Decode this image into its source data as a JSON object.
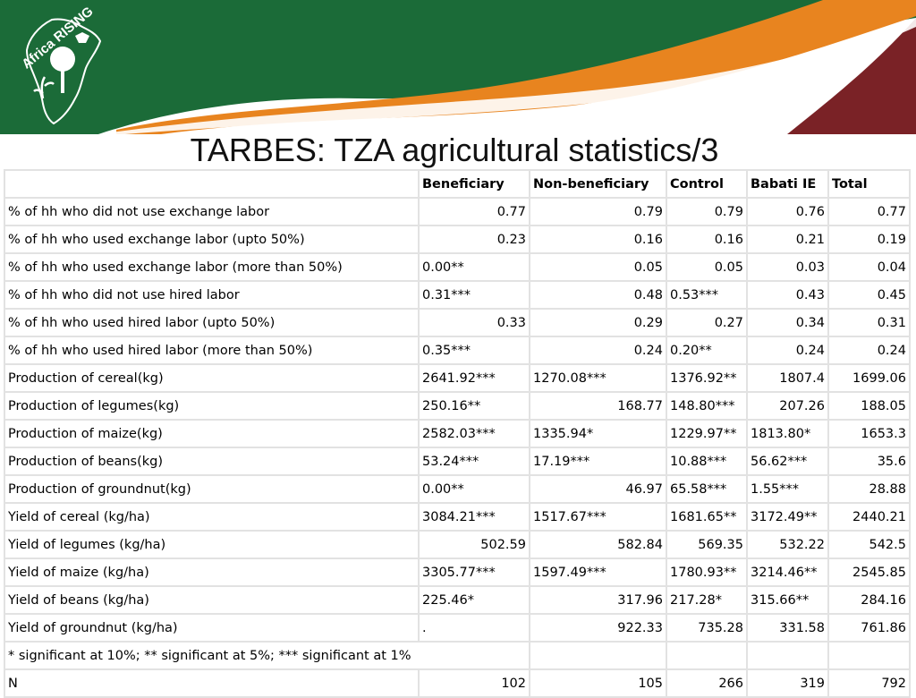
{
  "brand": {
    "logo_text": "Africa RISING",
    "colors": {
      "green": "#1b6b38",
      "orange": "#e8841f",
      "maroon": "#7a2226"
    }
  },
  "title": "TARBES: TZA agricultural statistics/3",
  "table": {
    "columns": [
      "",
      "Beneficiary",
      "Non-beneficiary",
      "Control",
      "Babati IE",
      "Total"
    ],
    "rows": [
      {
        "label": "% of hh who did not use exchange labor",
        "cells": [
          {
            "v": "0.77",
            "a": "r"
          },
          {
            "v": "0.79",
            "a": "r"
          },
          {
            "v": "0.79",
            "a": "r"
          },
          {
            "v": "0.76",
            "a": "r"
          },
          {
            "v": "0.77",
            "a": "r"
          }
        ]
      },
      {
        "label": "% of hh who used exchange labor (upto 50%)",
        "cells": [
          {
            "v": "0.23",
            "a": "r"
          },
          {
            "v": "0.16",
            "a": "r"
          },
          {
            "v": "0.16",
            "a": "r"
          },
          {
            "v": "0.21",
            "a": "r"
          },
          {
            "v": "0.19",
            "a": "r"
          }
        ]
      },
      {
        "label": "% of hh who used exchange labor (more than 50%)",
        "cells": [
          {
            "v": "0.00**",
            "a": "l"
          },
          {
            "v": "0.05",
            "a": "r"
          },
          {
            "v": "0.05",
            "a": "r"
          },
          {
            "v": "0.03",
            "a": "r"
          },
          {
            "v": "0.04",
            "a": "r"
          }
        ]
      },
      {
        "label": "% of hh who did not use hired labor",
        "cells": [
          {
            "v": "0.31***",
            "a": "l"
          },
          {
            "v": "0.48",
            "a": "r"
          },
          {
            "v": "0.53***",
            "a": "l"
          },
          {
            "v": "0.43",
            "a": "r"
          },
          {
            "v": "0.45",
            "a": "r"
          }
        ]
      },
      {
        "label": "% of hh who used hired labor (upto 50%)",
        "cells": [
          {
            "v": "0.33",
            "a": "r"
          },
          {
            "v": "0.29",
            "a": "r"
          },
          {
            "v": "0.27",
            "a": "r"
          },
          {
            "v": "0.34",
            "a": "r"
          },
          {
            "v": "0.31",
            "a": "r"
          }
        ]
      },
      {
        "label": "% of hh who used hired labor (more than 50%)",
        "cells": [
          {
            "v": "0.35***",
            "a": "l"
          },
          {
            "v": "0.24",
            "a": "r"
          },
          {
            "v": "0.20**",
            "a": "l"
          },
          {
            "v": "0.24",
            "a": "r"
          },
          {
            "v": "0.24",
            "a": "r"
          }
        ]
      },
      {
        "label": "Production of cereal(kg)",
        "cells": [
          {
            "v": "2641.92***",
            "a": "l"
          },
          {
            "v": "1270.08***",
            "a": "l"
          },
          {
            "v": "1376.92**",
            "a": "l"
          },
          {
            "v": "1807.4",
            "a": "r"
          },
          {
            "v": "1699.06",
            "a": "r"
          }
        ]
      },
      {
        "label": "Production of legumes(kg)",
        "cells": [
          {
            "v": "250.16**",
            "a": "l"
          },
          {
            "v": "168.77",
            "a": "r"
          },
          {
            "v": "148.80***",
            "a": "l"
          },
          {
            "v": "207.26",
            "a": "r"
          },
          {
            "v": "188.05",
            "a": "r"
          }
        ]
      },
      {
        "label": "Production of maize(kg)",
        "cells": [
          {
            "v": "2582.03***",
            "a": "l"
          },
          {
            "v": "1335.94*",
            "a": "l"
          },
          {
            "v": "1229.97**",
            "a": "l"
          },
          {
            "v": "1813.80*",
            "a": "l"
          },
          {
            "v": "1653.3",
            "a": "r"
          }
        ]
      },
      {
        "label": "Production of beans(kg)",
        "cells": [
          {
            "v": "53.24***",
            "a": "l"
          },
          {
            "v": "17.19***",
            "a": "l"
          },
          {
            "v": "10.88***",
            "a": "l"
          },
          {
            "v": "56.62***",
            "a": "l"
          },
          {
            "v": "35.6",
            "a": "r"
          }
        ]
      },
      {
        "label": "Production of groundnut(kg)",
        "cells": [
          {
            "v": "0.00**",
            "a": "l"
          },
          {
            "v": "46.97",
            "a": "r"
          },
          {
            "v": "65.58***",
            "a": "l"
          },
          {
            "v": "1.55***",
            "a": "l"
          },
          {
            "v": "28.88",
            "a": "r"
          }
        ]
      },
      {
        "label": "Yield of cereal (kg/ha)",
        "cells": [
          {
            "v": "3084.21***",
            "a": "l"
          },
          {
            "v": "1517.67***",
            "a": "l"
          },
          {
            "v": "1681.65**",
            "a": "l"
          },
          {
            "v": "3172.49**",
            "a": "l"
          },
          {
            "v": "2440.21",
            "a": "r"
          }
        ]
      },
      {
        "label": "Yield of legumes (kg/ha)",
        "cells": [
          {
            "v": "502.59",
            "a": "r"
          },
          {
            "v": "582.84",
            "a": "r"
          },
          {
            "v": "569.35",
            "a": "r"
          },
          {
            "v": "532.22",
            "a": "r"
          },
          {
            "v": "542.5",
            "a": "r"
          }
        ]
      },
      {
        "label": "Yield of maize (kg/ha)",
        "cells": [
          {
            "v": "3305.77***",
            "a": "l"
          },
          {
            "v": "1597.49***",
            "a": "l"
          },
          {
            "v": "1780.93**",
            "a": "l"
          },
          {
            "v": "3214.46**",
            "a": "l"
          },
          {
            "v": "2545.85",
            "a": "r"
          }
        ]
      },
      {
        "label": "Yield of beans (kg/ha)",
        "cells": [
          {
            "v": "225.46*",
            "a": "l"
          },
          {
            "v": "317.96",
            "a": "r"
          },
          {
            "v": "217.28*",
            "a": "l"
          },
          {
            "v": "315.66**",
            "a": "l"
          },
          {
            "v": "284.16",
            "a": "r"
          }
        ]
      },
      {
        "label": "Yield of groundnut (kg/ha)",
        "cells": [
          {
            "v": ".",
            "a": "l"
          },
          {
            "v": "922.33",
            "a": "r"
          },
          {
            "v": "735.28",
            "a": "r"
          },
          {
            "v": "331.58",
            "a": "r"
          },
          {
            "v": "761.86",
            "a": "r"
          }
        ]
      }
    ],
    "footnote": "* significant at 10%; ** significant at 5%; *** significant at 1%",
    "n_row": {
      "label": "N",
      "cells": [
        {
          "v": "102",
          "a": "r"
        },
        {
          "v": "105",
          "a": "r"
        },
        {
          "v": "266",
          "a": "r"
        },
        {
          "v": "319",
          "a": "r"
        },
        {
          "v": "792",
          "a": "r"
        }
      ]
    }
  }
}
